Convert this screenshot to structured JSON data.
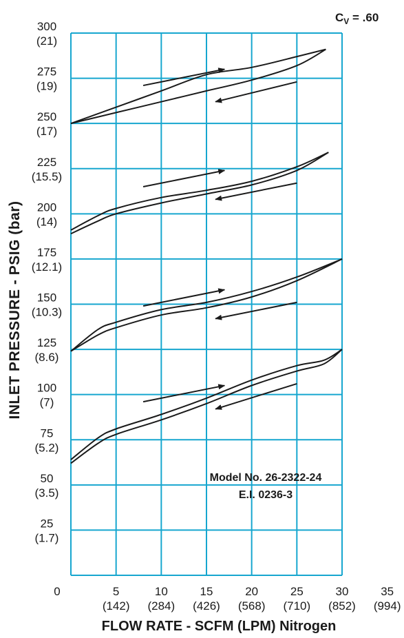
{
  "chart_data": {
    "type": "line",
    "cv_label": {
      "prefix": "C",
      "subscript": "V",
      "suffix": " = .60"
    },
    "ylabel": "INLET PRESSURE - PSIG (bar)",
    "xlabel": "FLOW RATE - SCFM (LPM) Nitrogen",
    "annotation": [
      "Model No. 26-2322-24",
      "E.I. 0236-3"
    ],
    "xlim": [
      0,
      30
    ],
    "ylim": [
      0,
      300
    ],
    "x_ticks": [
      {
        "value": 0,
        "primary": "0",
        "secondary": ""
      },
      {
        "value": 5,
        "primary": "5",
        "secondary": "(142)"
      },
      {
        "value": 10,
        "primary": "10",
        "secondary": "(284)"
      },
      {
        "value": 15,
        "primary": "15",
        "secondary": "(426)"
      },
      {
        "value": 20,
        "primary": "20",
        "secondary": "(568)"
      },
      {
        "value": 25,
        "primary": "25",
        "secondary": "(710)"
      },
      {
        "value": 30,
        "primary": "30",
        "secondary": "(852)"
      },
      {
        "value": 35,
        "primary": "35",
        "secondary": "(994)"
      }
    ],
    "y_ticks": [
      {
        "value": 25,
        "primary": "25",
        "secondary": "(1.7)"
      },
      {
        "value": 50,
        "primary": "50",
        "secondary": "(3.5)"
      },
      {
        "value": 75,
        "primary": "75",
        "secondary": "(5.2)"
      },
      {
        "value": 100,
        "primary": "100",
        "secondary": "(7)"
      },
      {
        "value": 125,
        "primary": "125",
        "secondary": "(8.6)"
      },
      {
        "value": 150,
        "primary": "150",
        "secondary": "(10.3)"
      },
      {
        "value": 175,
        "primary": "175",
        "secondary": "(12.1)"
      },
      {
        "value": 200,
        "primary": "200",
        "secondary": "(14)"
      },
      {
        "value": 225,
        "primary": "225",
        "secondary": "(15.5)"
      },
      {
        "value": 250,
        "primary": "250",
        "secondary": "(17)"
      },
      {
        "value": 275,
        "primary": "275",
        "secondary": "(19)"
      },
      {
        "value": 300,
        "primary": "300",
        "secondary": "(21)"
      }
    ],
    "grid": true,
    "colors": {
      "grid": "#16a6cf",
      "curve": "#1a1a1a",
      "text": "#1a1a1a"
    },
    "series": [
      {
        "x": [
          0,
          5,
          10,
          15,
          20,
          25,
          28.2
        ],
        "y": [
          250,
          259,
          268,
          277,
          281,
          287,
          291
        ]
      },
      {
        "x": [
          0,
          5,
          10,
          15,
          20,
          25,
          28.2
        ],
        "y": [
          250,
          256,
          262,
          268,
          274,
          282,
          291
        ]
      },
      {
        "x": [
          0,
          3,
          5,
          10,
          15,
          20,
          25,
          28.5
        ],
        "y": [
          191,
          199,
          203,
          209,
          213,
          218,
          226,
          234
        ]
      },
      {
        "x": [
          0,
          3,
          5,
          10,
          15,
          20,
          25,
          28.5
        ],
        "y": [
          189,
          196,
          200,
          206,
          211,
          216,
          224,
          234
        ]
      },
      {
        "x": [
          0,
          3,
          5,
          10,
          15,
          20,
          25,
          30
        ],
        "y": [
          124,
          136,
          140,
          147,
          151,
          157,
          165,
          175
        ]
      },
      {
        "x": [
          0,
          3,
          5,
          10,
          15,
          20,
          25,
          30
        ],
        "y": [
          124,
          133,
          137,
          144,
          148,
          154,
          163,
          175
        ]
      },
      {
        "x": [
          0,
          3,
          5,
          10,
          15,
          20,
          25,
          28,
          30
        ],
        "y": [
          64,
          76,
          81,
          89,
          98,
          108,
          116,
          119,
          125
        ]
      },
      {
        "x": [
          0,
          3,
          5,
          10,
          15,
          20,
          25,
          28,
          30
        ],
        "y": [
          62,
          73,
          78,
          86,
          95,
          105,
          113,
          117,
          125
        ]
      }
    ],
    "arrows": [
      {
        "from": [
          8,
          271
        ],
        "to": [
          17,
          280
        ]
      },
      {
        "from": [
          25,
          273
        ],
        "to": [
          16,
          262
        ]
      },
      {
        "from": [
          8,
          215
        ],
        "to": [
          17,
          224
        ]
      },
      {
        "from": [
          25,
          217
        ],
        "to": [
          16,
          208
        ]
      },
      {
        "from": [
          8,
          149
        ],
        "to": [
          17,
          158
        ]
      },
      {
        "from": [
          25,
          151
        ],
        "to": [
          16,
          142
        ]
      },
      {
        "from": [
          8,
          96
        ],
        "to": [
          17,
          105
        ]
      },
      {
        "from": [
          25,
          106
        ],
        "to": [
          16,
          92
        ]
      }
    ]
  }
}
